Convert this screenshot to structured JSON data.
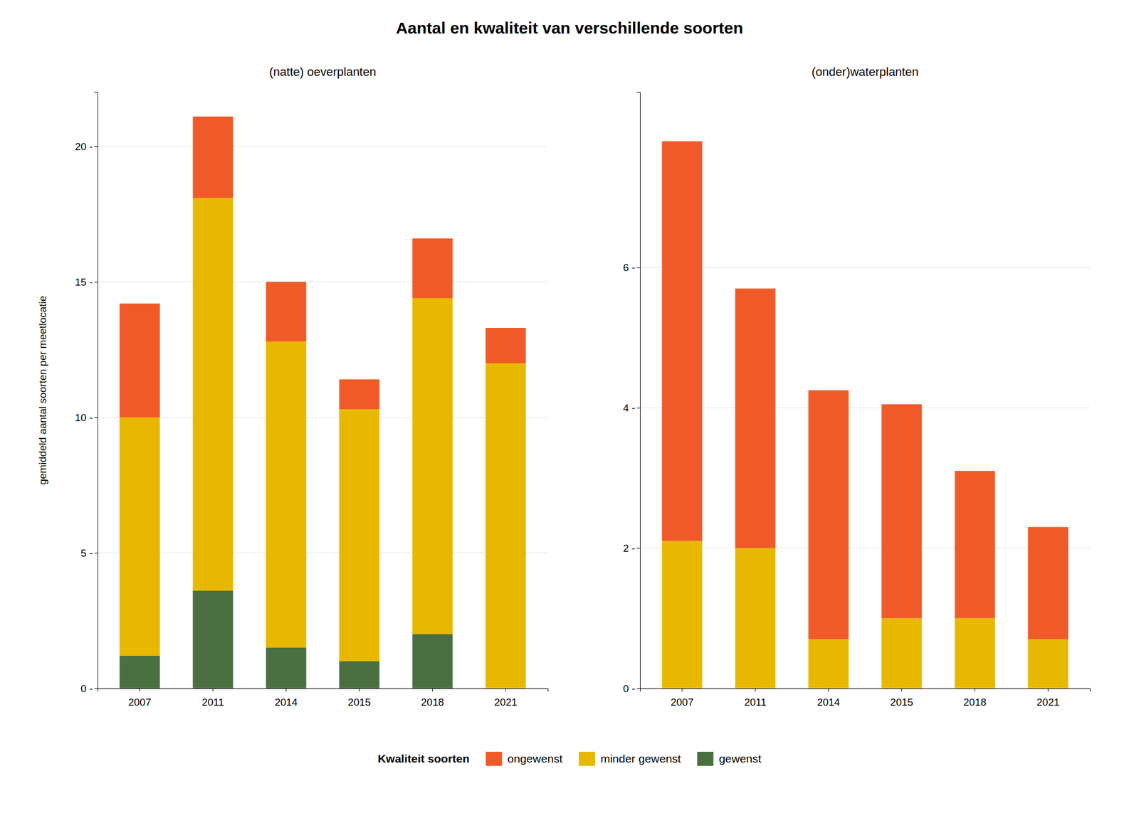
{
  "chart_data": [
    {
      "type": "bar",
      "stacked": true,
      "title": "Aantal en kwaliteit van verschillende soorten",
      "subtitle": "(natte) oeverplanten",
      "ylabel": "gemiddeld aantal soorten per meetlocatie",
      "legend_title": "Kwaliteit soorten",
      "legend": "bottom",
      "grid": true,
      "categories": [
        2007,
        2011,
        2014,
        2015,
        2018,
        2021
      ],
      "series": [
        {
          "name": "gewenst",
          "color": "#4A7042",
          "values": [
            1.2,
            3.6,
            1.5,
            1.0,
            2.0,
            0.0
          ]
        },
        {
          "name": "minder gewenst",
          "color": "#E8B800",
          "values": [
            8.8,
            14.5,
            11.3,
            9.3,
            12.4,
            12.0
          ]
        },
        {
          "name": "ongewenst",
          "color": "#F05A28",
          "values": [
            4.2,
            3.0,
            2.2,
            1.1,
            2.2,
            1.3
          ]
        }
      ],
      "ylim": [
        0,
        22
      ],
      "yticks": [
        {
          "value": 0,
          "label": "0 -"
        },
        {
          "value": 5,
          "label": "5 -"
        },
        {
          "value": 10,
          "label": "10 -"
        },
        {
          "value": 15,
          "label": "15 -"
        },
        {
          "value": 20,
          "label": "20 -"
        }
      ]
    },
    {
      "type": "bar",
      "stacked": true,
      "subtitle": "(onder)waterplanten",
      "grid": true,
      "categories": [
        2007,
        2011,
        2014,
        2015,
        2018,
        2021
      ],
      "series": [
        {
          "color": "#4A7042",
          "values": [
            0.0,
            0.0,
            0.0,
            0.0,
            0.0,
            0.0
          ]
        },
        {
          "color": "#E8B800",
          "values": [
            2.1,
            2.0,
            0.7,
            1.0,
            1.0,
            0.7
          ]
        },
        {
          "color": "#F05A28",
          "values": [
            5.7,
            3.7,
            3.55,
            3.05,
            2.1,
            1.6
          ]
        }
      ],
      "ylim": [
        0,
        8.5
      ],
      "yticks": [
        {
          "value": 0,
          "label": "0 -"
        },
        {
          "value": 2,
          "label": "2 -"
        },
        {
          "value": 4,
          "label": "4 -"
        },
        {
          "value": 6,
          "label": "6 -"
        }
      ]
    }
  ]
}
